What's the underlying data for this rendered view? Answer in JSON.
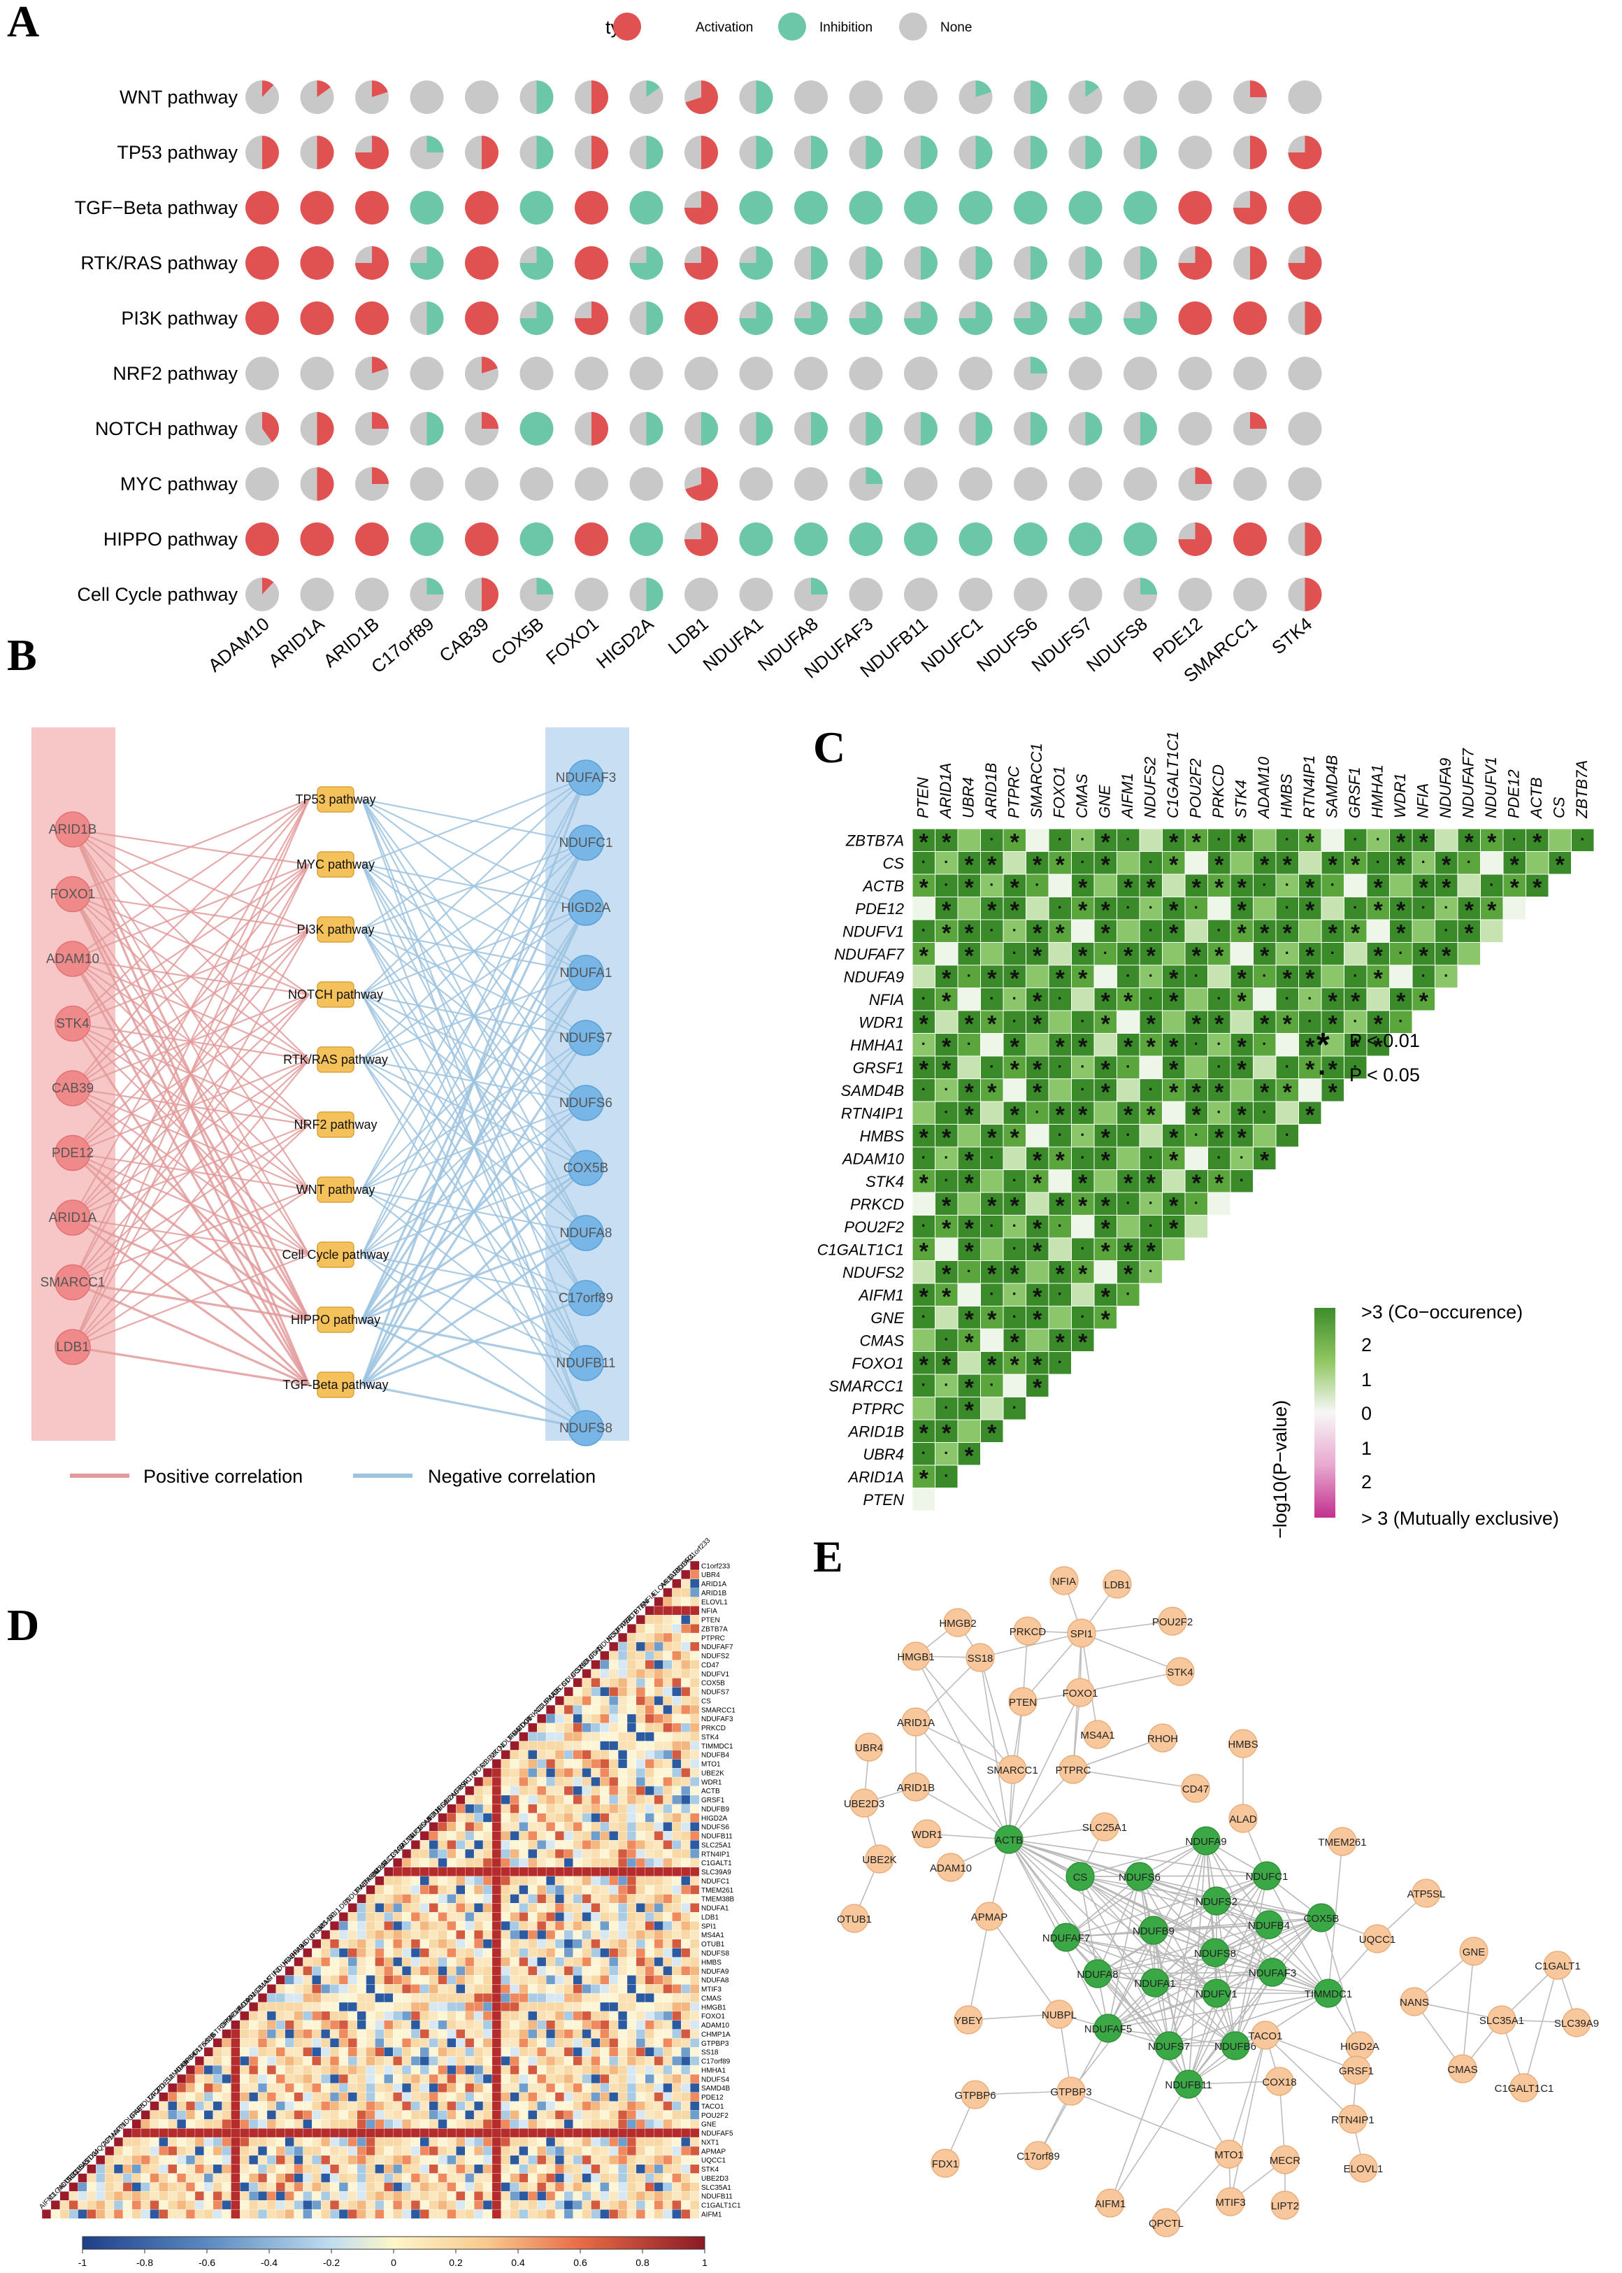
{
  "panels": {
    "a": "A",
    "b": "B",
    "c": "C",
    "d": "D",
    "e": "E"
  },
  "chart_data": [
    {
      "type": "pie-matrix",
      "panel": "A",
      "legend_title": "type",
      "legend": [
        {
          "name": "Activation",
          "color": "#e05252"
        },
        {
          "name": "Inhibition",
          "color": "#6cc6a8"
        },
        {
          "name": "None",
          "color": "#c8c8c8"
        }
      ],
      "rows": [
        "WNT pathway",
        "TP53 pathway",
        "TGF−Beta pathway",
        "RTK/RAS pathway",
        "PI3K pathway",
        "NRF2 pathway",
        "NOTCH pathway",
        "MYC pathway",
        "HIPPO pathway",
        "Cell Cycle pathway"
      ],
      "cols": [
        "ADAM10",
        "ARID1A",
        "ARID1B",
        "C17orf89",
        "CAB39",
        "COX5B",
        "FOXO1",
        "HIGD2A",
        "LDB1",
        "NDUFA1",
        "NDUFA8",
        "NDUFAF3",
        "NDUFB11",
        "NDUFC1",
        "NDUFS6",
        "NDUFS7",
        "NDUFS8",
        "PDE12",
        "SMARCC1",
        "STK4"
      ],
      "values_note": "each cell = [activation, inhibition] fraction; remainder = none",
      "values": [
        [
          [
            0.12,
            0
          ],
          [
            0.15,
            0
          ],
          [
            0.2,
            0
          ],
          [
            0,
            0
          ],
          [
            0,
            0
          ],
          [
            0,
            0.5
          ],
          [
            0.5,
            0
          ],
          [
            0,
            0.15
          ],
          [
            0.7,
            0
          ],
          [
            0,
            0.5
          ],
          [
            0,
            0
          ],
          [
            0,
            0
          ],
          [
            0,
            0
          ],
          [
            0,
            0.2
          ],
          [
            0,
            0.5
          ],
          [
            0,
            0.15
          ],
          [
            0,
            0
          ],
          [
            0,
            0
          ],
          [
            0.25,
            0
          ],
          [
            0,
            0
          ]
        ],
        [
          [
            0.5,
            0
          ],
          [
            0.5,
            0
          ],
          [
            0.75,
            0
          ],
          [
            0,
            0.25
          ],
          [
            0.5,
            0
          ],
          [
            0,
            0.5
          ],
          [
            0.5,
            0
          ],
          [
            0,
            0.5
          ],
          [
            0.5,
            0
          ],
          [
            0,
            0.5
          ],
          [
            0,
            0.5
          ],
          [
            0,
            0.5
          ],
          [
            0,
            0.5
          ],
          [
            0,
            0.5
          ],
          [
            0,
            0.5
          ],
          [
            0,
            0.5
          ],
          [
            0,
            0.5
          ],
          [
            0,
            0
          ],
          [
            0.5,
            0
          ],
          [
            0.75,
            0
          ]
        ],
        [
          [
            1,
            0
          ],
          [
            1,
            0
          ],
          [
            1,
            0
          ],
          [
            0,
            1
          ],
          [
            1,
            0
          ],
          [
            0,
            1
          ],
          [
            1,
            0
          ],
          [
            0,
            1
          ],
          [
            0.75,
            0
          ],
          [
            0,
            1
          ],
          [
            0,
            1
          ],
          [
            0,
            1
          ],
          [
            0,
            1
          ],
          [
            0,
            1
          ],
          [
            0,
            1
          ],
          [
            0,
            1
          ],
          [
            0,
            1
          ],
          [
            1,
            0
          ],
          [
            0.75,
            0
          ],
          [
            1,
            0
          ]
        ],
        [
          [
            1,
            0
          ],
          [
            1,
            0
          ],
          [
            0.75,
            0
          ],
          [
            0,
            0.75
          ],
          [
            1,
            0
          ],
          [
            0,
            0.75
          ],
          [
            1,
            0
          ],
          [
            0,
            0.75
          ],
          [
            0.75,
            0
          ],
          [
            0,
            0.75
          ],
          [
            0,
            0.5
          ],
          [
            0,
            0.5
          ],
          [
            0,
            0.5
          ],
          [
            0,
            0.5
          ],
          [
            0,
            0.5
          ],
          [
            0,
            0.5
          ],
          [
            0,
            0.5
          ],
          [
            0.75,
            0
          ],
          [
            0.5,
            0
          ],
          [
            0.75,
            0
          ]
        ],
        [
          [
            1,
            0
          ],
          [
            1,
            0
          ],
          [
            1,
            0
          ],
          [
            0,
            0.5
          ],
          [
            1,
            0
          ],
          [
            0,
            0.75
          ],
          [
            0.75,
            0
          ],
          [
            0,
            0.5
          ],
          [
            1,
            0
          ],
          [
            0,
            0.75
          ],
          [
            0,
            0.75
          ],
          [
            0,
            0.75
          ],
          [
            0,
            0.75
          ],
          [
            0,
            0.75
          ],
          [
            0,
            0.75
          ],
          [
            0,
            0.75
          ],
          [
            0,
            0.75
          ],
          [
            1,
            0
          ],
          [
            1,
            0
          ],
          [
            0.5,
            0
          ]
        ],
        [
          [
            0,
            0
          ],
          [
            0,
            0
          ],
          [
            0.2,
            0
          ],
          [
            0,
            0
          ],
          [
            0.2,
            0
          ],
          [
            0,
            0
          ],
          [
            0,
            0
          ],
          [
            0,
            0
          ],
          [
            0,
            0
          ],
          [
            0,
            0
          ],
          [
            0,
            0
          ],
          [
            0,
            0
          ],
          [
            0,
            0
          ],
          [
            0,
            0
          ],
          [
            0,
            0.25
          ],
          [
            0,
            0
          ],
          [
            0,
            0
          ],
          [
            0,
            0
          ],
          [
            0,
            0
          ],
          [
            0,
            0
          ]
        ],
        [
          [
            0.4,
            0
          ],
          [
            0.5,
            0
          ],
          [
            0.25,
            0
          ],
          [
            0,
            0.5
          ],
          [
            0.25,
            0
          ],
          [
            0,
            1
          ],
          [
            0.5,
            0
          ],
          [
            0,
            0.5
          ],
          [
            0,
            0.5
          ],
          [
            0,
            0.5
          ],
          [
            0,
            0.5
          ],
          [
            0,
            0.5
          ],
          [
            0,
            0.5
          ],
          [
            0,
            0.5
          ],
          [
            0,
            0.5
          ],
          [
            0,
            0.5
          ],
          [
            0,
            0.5
          ],
          [
            0,
            0
          ],
          [
            0.25,
            0
          ],
          [
            0,
            0
          ]
        ],
        [
          [
            0,
            0
          ],
          [
            0.5,
            0
          ],
          [
            0.25,
            0
          ],
          [
            0,
            0
          ],
          [
            0,
            0
          ],
          [
            0,
            0
          ],
          [
            0,
            0
          ],
          [
            0,
            0
          ],
          [
            0.7,
            0
          ],
          [
            0,
            0
          ],
          [
            0,
            0
          ],
          [
            0,
            0.25
          ],
          [
            0,
            0
          ],
          [
            0,
            0
          ],
          [
            0,
            0
          ],
          [
            0,
            0
          ],
          [
            0,
            0
          ],
          [
            0.25,
            0
          ],
          [
            0,
            0
          ],
          [
            0,
            0
          ]
        ],
        [
          [
            1,
            0
          ],
          [
            1,
            0
          ],
          [
            1,
            0
          ],
          [
            0,
            1
          ],
          [
            1,
            0
          ],
          [
            0,
            1
          ],
          [
            1,
            0
          ],
          [
            0,
            1
          ],
          [
            0.75,
            0
          ],
          [
            0,
            1
          ],
          [
            0,
            1
          ],
          [
            0,
            1
          ],
          [
            0,
            1
          ],
          [
            0,
            1
          ],
          [
            0,
            1
          ],
          [
            0,
            1
          ],
          [
            0,
            1
          ],
          [
            0.75,
            0
          ],
          [
            1,
            0
          ],
          [
            0.5,
            0
          ]
        ],
        [
          [
            0.12,
            0
          ],
          [
            0,
            0
          ],
          [
            0,
            0
          ],
          [
            0,
            0.25
          ],
          [
            0.5,
            0
          ],
          [
            0,
            0.25
          ],
          [
            0,
            0
          ],
          [
            0,
            0.5
          ],
          [
            0,
            0
          ],
          [
            0,
            0
          ],
          [
            0,
            0.25
          ],
          [
            0,
            0
          ],
          [
            0,
            0
          ],
          [
            0,
            0
          ],
          [
            0,
            0
          ],
          [
            0,
            0
          ],
          [
            0,
            0.25
          ],
          [
            0,
            0
          ],
          [
            0,
            0
          ],
          [
            0.5,
            0
          ]
        ]
      ]
    },
    {
      "type": "network-tripartite",
      "panel": "B",
      "left_nodes": [
        "ARID1B",
        "FOXO1",
        "ADAM10",
        "STK4",
        "CAB39",
        "PDE12",
        "ARID1A",
        "SMARCC1",
        "LDB1"
      ],
      "mid_nodes": [
        "TP53 pathway",
        "MYC pathway",
        "PI3K pathway",
        "NOTCH pathway",
        "RTK/RAS pathway",
        "NRF2 pathway",
        "WNT pathway",
        "Cell Cycle pathway",
        "HIPPO pathway",
        "TGF-Beta pathway"
      ],
      "right_nodes": [
        "NDUFAF3",
        "NDUFC1",
        "HIGD2A",
        "NDUFA1",
        "NDUFS7",
        "NDUFS6",
        "COX5B",
        "NDUFA8",
        "C17orf89",
        "NDUFB11",
        "NDUFS8"
      ],
      "legend": [
        {
          "name": "Positive correlation",
          "color": "#e39a9a"
        },
        {
          "name": "Negative correlation",
          "color": "#9cc3df"
        }
      ]
    },
    {
      "type": "heatmap-triangle",
      "panel": "C",
      "col_labels": [
        "PTEN",
        "ARID1A",
        "UBR4",
        "ARID1B",
        "PTPRC",
        "SMARCC1",
        "FOXO1",
        "CMAS",
        "GNE",
        "AIFM1",
        "NDUFS2",
        "C1GALT1C1",
        "POU2F2",
        "PRKCD",
        "STK4",
        "ADAM10",
        "HMBS",
        "RTN4IP1",
        "SAMD4B",
        "GRSF1",
        "HMHA1",
        "WDR1",
        "NFIA",
        "NDUFA9",
        "NDUFAF7",
        "NDUFV1",
        "PDE12",
        "ACTB",
        "CS",
        "ZBTB7A"
      ],
      "row_labels": [
        "ZBTB7A",
        "CS",
        "ACTB",
        "PDE12",
        "NDUFV1",
        "NDUFAF7",
        "NDUFA9",
        "NFIA",
        "WDR1",
        "HMHA1",
        "GRSF1",
        "SAMD4B",
        "RTN4IP1",
        "HMBS",
        "ADAM10",
        "STK4",
        "PRKCD",
        "POU2F2",
        "C1GALT1C1",
        "NDUFS2",
        "AIFM1",
        "GNE",
        "CMAS",
        "FOXO1",
        "SMARCC1",
        "PTPRC",
        "ARID1B",
        "UBR4",
        "ARID1A",
        "PTEN"
      ],
      "sig_legend": [
        {
          "symbol": "*",
          "label": "P < 0.01"
        },
        {
          "symbol": "·",
          "label": "P < 0.05"
        }
      ],
      "colorbar": {
        "label": "−log10(P−value)",
        "top": ">3 (Co−occurence)",
        "bottom": "> 3 (Mutually exclusive)",
        "ticks": [
          "2",
          "1",
          "0",
          "1",
          "2"
        ]
      }
    },
    {
      "type": "heatmap-triangle",
      "panel": "D",
      "row_labels": [
        "C1orf233",
        "UBR4",
        "ARID1A",
        "ARID1B",
        "ELOVL1",
        "NFIA",
        "PTEN",
        "ZBTB7A",
        "PTPRC",
        "NDUFAF7",
        "NDUFS2",
        "CD47",
        "NDUFV1",
        "COX5B",
        "NDUFS7",
        "CS",
        "SMARCC1",
        "NDUFAF3",
        "PRKCD",
        "STK4",
        "TIMMDC1",
        "NDUFB4",
        "MTO1",
        "UBE2K",
        "WDR1",
        "ACTB",
        "GRSF1",
        "NDUFB9",
        "HIGD2A",
        "NDUFS6",
        "NDUFB11",
        "SLC25A1",
        "RTN4IP1",
        "C1GALT1",
        "SLC39A9",
        "NDUFC1",
        "TMEM261",
        "TMEM38B",
        "NDUFA1",
        "LDB1",
        "SPI1",
        "MS4A1",
        "OTUB1",
        "NDUFS8",
        "HMBS",
        "NDUFA9",
        "NDUFA8",
        "MTIF3",
        "CMAS",
        "HMGB1",
        "FOXO1",
        "ADAM10",
        "CHMP1A",
        "GTPBP3",
        "SS18",
        "C17orf89",
        "HMHA1",
        "NDUFS4",
        "SAMD4B",
        "PDE12",
        "TACO1",
        "POU2F2",
        "GNE",
        "NDUFAF5",
        "NXT1",
        "APMAP",
        "UQCC1",
        "STK4",
        "UBE2D3",
        "SLC35A1",
        "NDUFB11",
        "C1GALT1C1",
        "AIFM1"
      ],
      "colorbar_ticks": [
        "-1",
        "-0.8",
        "-0.6",
        "-0.4",
        "-0.2",
        "0",
        "0.2",
        "0.4",
        "0.6",
        "0.8",
        "1"
      ]
    },
    {
      "type": "network",
      "panel": "E",
      "green_nodes": [
        "ACTB",
        "CS",
        "NDUFS6",
        "NDUFA9",
        "NDUFS2",
        "NDUFC1",
        "NDUFB9",
        "NDUFAF7",
        "NDUFB4",
        "COX5B",
        "NDUFS8",
        "NDUFAF3",
        "NDUFA8",
        "NDUFA1",
        "NDUFV1",
        "TIMMDC1",
        "NDUFAF5",
        "NDUFS7",
        "NDUFB6",
        "NDUFB11"
      ],
      "orange_nodes": [
        "NFIA",
        "LDB1",
        "HMGB2",
        "POU2F2",
        "PRKCD",
        "SPI1",
        "HMGB1",
        "SS18",
        "STK4",
        "PTEN",
        "FOXO1",
        "MS4A1",
        "ARID1A",
        "RHOH",
        "HMBS",
        "UBR4",
        "SMARCC1",
        "PTPRC",
        "ARID1B",
        "CD47",
        "SLC25A1",
        "UBE2D3",
        "WDR1",
        "ALAD",
        "UBE2K",
        "TMEM261",
        "ADAM10",
        "OTUB1",
        "ATP5SL",
        "APMAP",
        "UQCC1",
        "GNE",
        "C1GALT1",
        "NANS",
        "YBEY",
        "NUBPL",
        "SLC35A1",
        "SLC39A9",
        "HIGD2A",
        "CMAS",
        "C1GALT1C1",
        "TACO1",
        "GRSF1",
        "COX18",
        "GTPBP6",
        "GTPBP3",
        "RTN4IP1",
        "FDX1",
        "C17orf89",
        "MTO1",
        "MECR",
        "ELOVL1",
        "AIFM1",
        "MTIF3",
        "LIPT2",
        "QPCTL"
      ]
    }
  ],
  "colors": {
    "activation": "#e05252",
    "inhibition": "#6cc6a8",
    "none": "#c8c8c8",
    "pos": "#e39a9a",
    "neg": "#9cc3df",
    "green": "#39a845",
    "orange": "#f8c79c"
  }
}
